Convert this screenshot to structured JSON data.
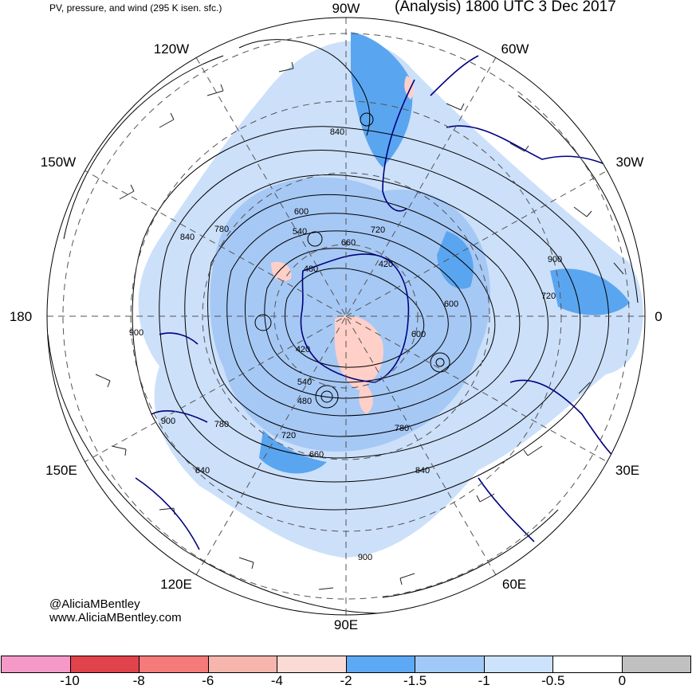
{
  "header": {
    "title_left": "PV, pressure, and wind (295 K isen. sfc.)",
    "title_right": "(Analysis) 1800 UTC 3 Dec 2017"
  },
  "map": {
    "projection": "south-polar-stereographic",
    "meridian_labels": {
      "lon_90W": "90W",
      "lon_60W": "60W",
      "lon_30W": "30W",
      "lon_0": "0",
      "lon_30E": "30E",
      "lon_60E": "60E",
      "lon_90E": "90E",
      "lon_120E": "120E",
      "lon_150E": "150E",
      "lon_180": "180",
      "lon_150W": "150W",
      "lon_120W": "120W"
    },
    "pressure_contour_labels": {
      "c840_a": "840",
      "c600_a": "600",
      "c540_a": "540",
      "c660_a": "660",
      "c720_a": "720",
      "c780_a": "780",
      "c840_b": "840",
      "c480_a": "480",
      "c420_a": "420",
      "c900_a": "900",
      "c720_b": "720",
      "c600_b": "600",
      "c600_c": "600",
      "c900_b": "900",
      "c420_b": "420",
      "c540_b": "540",
      "c480_b": "480",
      "c900_c": "900",
      "c780_b": "780",
      "c720_c": "720",
      "c660_b": "660",
      "c840_c": "840",
      "c780_c": "780",
      "c840_d": "840",
      "c900_d": "900"
    },
    "colors": {
      "coastline": "#000080",
      "contour": "#000000",
      "grid": "#555555",
      "pv_light_blue": "#cce0fa",
      "pv_mid_blue": "#a6c8f5",
      "pv_dark_blue": "#5aa5f0",
      "pv_pink": "#ffd0c8"
    }
  },
  "colorbar": {
    "colors": [
      "#f59ac8",
      "#e0434b",
      "#f57a7a",
      "#f7b6ad",
      "#fadad5",
      "#5ea9f5",
      "#a1c9f7",
      "#cde2fb",
      "#ffffff",
      "#c0c0c0"
    ],
    "tick_labels": [
      "-10",
      "-8",
      "-6",
      "-4",
      "-2",
      "-1.5",
      "-1",
      "-0.5",
      "0"
    ]
  },
  "credits": {
    "handle": "@AliciaMBentley",
    "website": "www.AliciaMBentley.com"
  }
}
